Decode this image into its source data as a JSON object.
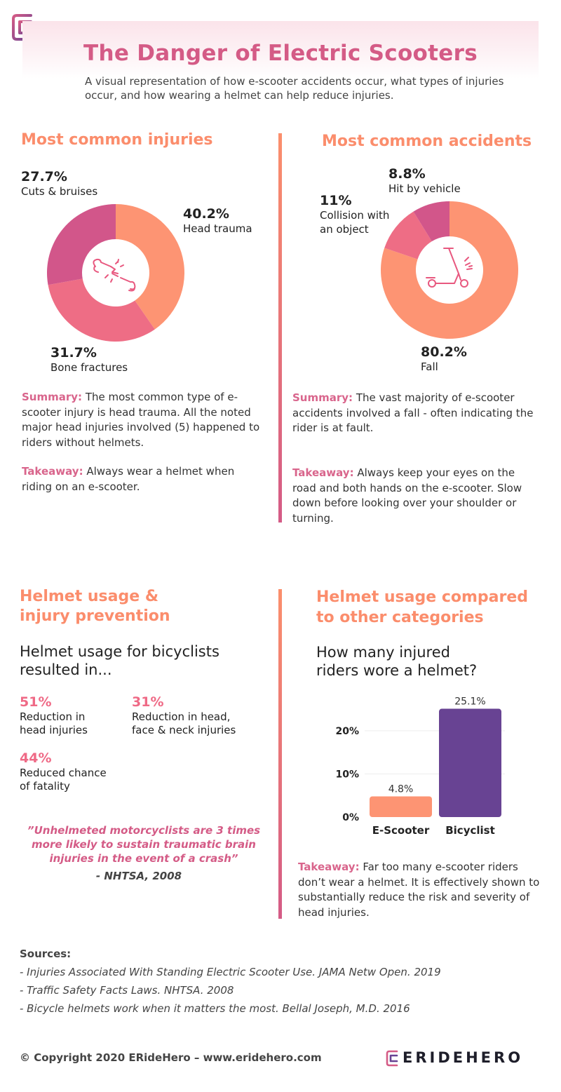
{
  "header": {
    "title": "The Danger of Electric Scooters",
    "subtitle": "A visual representation of how e-scooter accidents occur, what types of injuries occur, and how wearing a helmet can help reduce injuries."
  },
  "injuries": {
    "heading": "Most common injuries",
    "summary_label": "Summary:",
    "summary_text": " The most common type of e-scooter injury is head trauma. All the noted major head injuries involved (5) happened to riders without helmets.",
    "takeaway_label": "Takeaway:",
    "takeaway_text": " Always wear a helmet when riding on an e-scooter.",
    "center_icon": "broken-bone-icon"
  },
  "accidents": {
    "heading": "Most common accidents",
    "summary_label": "Summary:",
    "summary_text": " The vast majority of e-scooter accidents involved a fall - often indicating the rider is at fault.",
    "takeaway_label": "Takeaway:",
    "takeaway_text": " Always keep your eyes on the road and both hands on the e-scooter. Slow down before looking over your shoulder or turning.",
    "center_icon": "scooter-icon"
  },
  "helmet": {
    "heading_line1": "Helmet usage &",
    "heading_line2": "injury prevention",
    "intro_line1": "Helmet usage for bicyclists",
    "intro_line2": "resulted in...",
    "stats": [
      {
        "value": "51%",
        "line1": "Reduction in",
        "line2": "head injuries"
      },
      {
        "value": "31%",
        "line1": "Reduction in head,",
        "line2": "face & neck injuries"
      },
      {
        "value": "44%",
        "line1": "Reduced chance",
        "line2": "of fatality"
      }
    ],
    "quote_line1": "”Unhelmeted motorcyclists are 3 times",
    "quote_line2": "more likely to sustain traumatic brain",
    "quote_line3": "injuries in the event of a crash”",
    "quote_source": "- NHTSA, 2008"
  },
  "comparison": {
    "heading_line1": "Helmet usage compared",
    "heading_line2": "to other categories",
    "question_line1": "How many injured",
    "question_line2": "riders wore a helmet?",
    "takeaway_label": "Takeaway:",
    "takeaway_text": " Far too many e-scooter riders don’t wear a helmet. It is effectively shown to substantially reduce the risk and severity of head injuries."
  },
  "chart_data": [
    {
      "type": "pie",
      "title": "Most common injuries",
      "categories": [
        "Head trauma",
        "Bone fractures",
        "Cuts & bruises"
      ],
      "values": [
        40.2,
        31.7,
        27.7
      ],
      "value_labels": [
        "40.2%",
        "31.7%",
        "27.7%"
      ],
      "colors": [
        "#fd9473",
        "#ee6d85",
        "#d2568a"
      ]
    },
    {
      "type": "pie",
      "title": "Most common accidents",
      "categories": [
        "Fall",
        "Collision with an object",
        "Hit by vehicle"
      ],
      "label_lines": [
        [
          "Fall"
        ],
        [
          "Collision with",
          "an object"
        ],
        [
          "Hit by vehicle"
        ]
      ],
      "values": [
        80.2,
        11,
        8.8
      ],
      "value_labels": [
        "80.2%",
        "11%",
        "8.8%"
      ],
      "colors": [
        "#fd9473",
        "#ee6d85",
        "#d2568a"
      ]
    },
    {
      "type": "bar",
      "title": "How many injured riders wore a helmet?",
      "categories": [
        "E-Scooter",
        "Bicyclist"
      ],
      "values": [
        4.8,
        25.1
      ],
      "value_labels": [
        "4.8%",
        "25.1%"
      ],
      "colors": [
        "#fd9473",
        "#684393"
      ],
      "yticks": [
        0,
        10,
        20
      ],
      "ytick_labels": [
        "0%",
        "10%",
        "20%"
      ],
      "ylim": [
        0,
        26
      ]
    }
  ],
  "sources": {
    "heading": "Sources:",
    "items": [
      "- Injuries Associated With Standing Electric Scooter Use. JAMA Netw Open. 2019",
      "- Traffic Safety Facts Laws. NHTSA. 2008",
      "- Bicycle helmets work when it matters the most. Bellal Joseph, M.D. 2016"
    ]
  },
  "footer": {
    "copyright": "© Copyright 2020 ERideHero – www.eridehero.com",
    "brand": "ERIDEHERO"
  },
  "colors": {
    "orange": "#fb8d6c",
    "pink": "#d45b86",
    "purple": "#684393"
  }
}
